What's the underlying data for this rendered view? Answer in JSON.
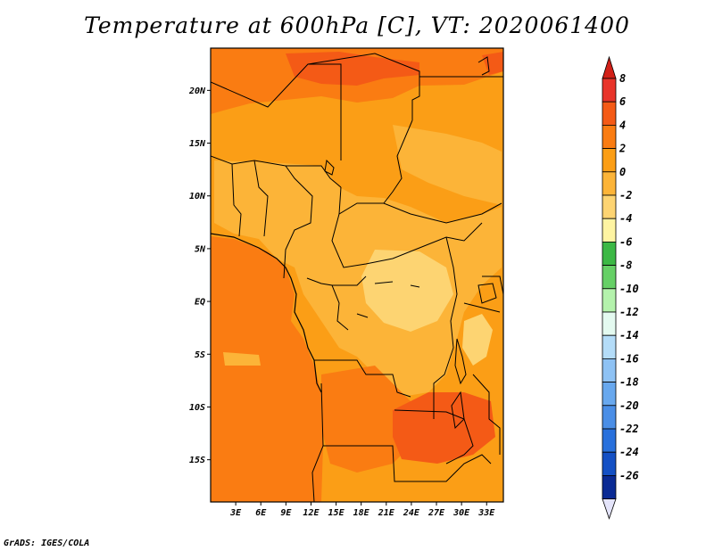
{
  "title": "Temperature at 600hPa [C], VT: 2020061400",
  "footer": "GrADS: IGES/COLA",
  "map": {
    "lat_range": [
      -19,
      24
    ],
    "lon_range": [
      0,
      35
    ],
    "lat_ticks": [
      {
        "lat": 20,
        "label": "20N"
      },
      {
        "lat": 15,
        "label": "15N"
      },
      {
        "lat": 10,
        "label": "10N"
      },
      {
        "lat": 5,
        "label": "5N"
      },
      {
        "lat": 0,
        "label": "EQ"
      },
      {
        "lat": -5,
        "label": "5S"
      },
      {
        "lat": -10,
        "label": "10S"
      },
      {
        "lat": -15,
        "label": "15S"
      }
    ],
    "lon_ticks": [
      {
        "lon": 3,
        "label": "3E"
      },
      {
        "lon": 6,
        "label": "6E"
      },
      {
        "lon": 9,
        "label": "9E"
      },
      {
        "lon": 12,
        "label": "12E"
      },
      {
        "lon": 15,
        "label": "15E"
      },
      {
        "lon": 18,
        "label": "18E"
      },
      {
        "lon": 21,
        "label": "21E"
      },
      {
        "lon": 24,
        "label": "24E"
      },
      {
        "lon": 27,
        "label": "27E"
      },
      {
        "lon": 30,
        "label": "30E"
      },
      {
        "lon": 33,
        "label": "33E"
      }
    ]
  },
  "colorbar": {
    "levels": [
      {
        "label": "8",
        "color": "#e8342a"
      },
      {
        "label": "6",
        "color": "#f45a16"
      },
      {
        "label": "4",
        "color": "#fa7c12"
      },
      {
        "label": "2",
        "color": "#fb9e16"
      },
      {
        "label": "0",
        "color": "#fcb438"
      },
      {
        "label": "-2",
        "color": "#fdd472"
      },
      {
        "label": "-4",
        "color": "#fef4a2"
      },
      {
        "label": "-6",
        "color": "#3cb845"
      },
      {
        "label": "-8",
        "color": "#66d066"
      },
      {
        "label": "-10",
        "color": "#b4f2ac"
      },
      {
        "label": "-12",
        "color": "#e4faf0"
      },
      {
        "label": "-14",
        "color": "#b4dcf8"
      },
      {
        "label": "-16",
        "color": "#8ec2f4"
      },
      {
        "label": "-18",
        "color": "#68a8ee"
      },
      {
        "label": "-20",
        "color": "#4a8ee6"
      },
      {
        "label": "-22",
        "color": "#2870dc"
      },
      {
        "label": "-24",
        "color": "#1450c4"
      },
      {
        "label": "-26",
        "color": "#0a2a94"
      }
    ],
    "over_color": "#d22018",
    "under_color": "#e4e4fa"
  },
  "colors": {
    "fill_dark": "#fa7c12",
    "fill_mid": "#fb9e16",
    "fill_light": "#fcb438",
    "fill_pale": "#fdd472",
    "fill_red": "#f45a16",
    "line": "#000000"
  }
}
